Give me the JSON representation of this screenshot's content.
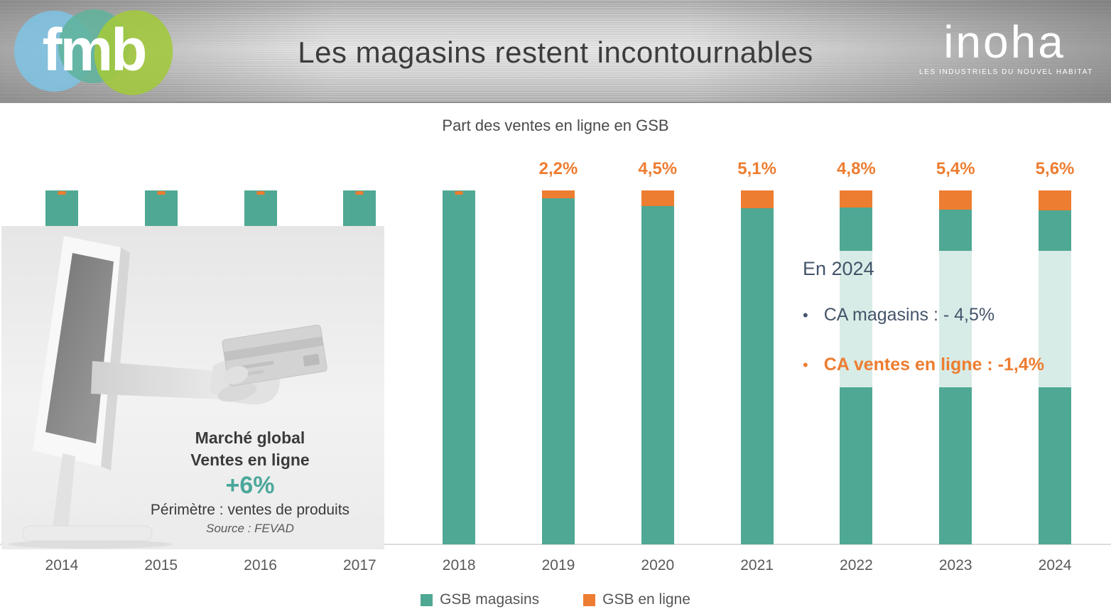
{
  "header": {
    "title": "Les magasins restent incontournables",
    "fmb_logo_text": "fmb",
    "inoha_logo_text": "inoha",
    "inoha_tagline": "LES INDUSTRIELS DU NOUVEL HABITAT"
  },
  "chart_data": {
    "type": "bar",
    "stacked": true,
    "percent_of_total": true,
    "title": "Part des ventes en ligne en GSB",
    "categories": [
      "2014",
      "2015",
      "2016",
      "2017",
      "2018",
      "2019",
      "2020",
      "2021",
      "2022",
      "2023",
      "2024"
    ],
    "series": [
      {
        "name": "GSB magasins",
        "color": "#4FA893",
        "values": [
          99.5,
          99.5,
          99.5,
          99.5,
          99.3,
          97.8,
          95.5,
          94.9,
          95.2,
          94.6,
          94.4
        ]
      },
      {
        "name": "GSB en ligne",
        "color": "#ED7D31",
        "values": [
          0.5,
          0.5,
          0.5,
          0.5,
          0.7,
          2.2,
          4.5,
          5.1,
          4.8,
          5.4,
          5.6
        ]
      }
    ],
    "bar_labels": [
      "",
      "",
      "",
      "",
      "",
      "2,2%",
      "4,5%",
      "5,1%",
      "4,8%",
      "5,4%",
      "5,6%"
    ],
    "legend": [
      {
        "label": "GSB magasins",
        "color": "#4FA893"
      },
      {
        "label": "GSB en ligne",
        "color": "#ED7D31"
      }
    ],
    "legend_position": "bottom",
    "ylim": [
      0,
      100
    ],
    "gridlines": false
  },
  "annotation": {
    "heading": "En 2024",
    "bullets": [
      {
        "text": "CA magasins : - 4,5%",
        "color": "#44546A"
      },
      {
        "text": "CA ventes en ligne : -1,4%",
        "color": "#ED7D31"
      }
    ]
  },
  "inset": {
    "line1": "Marché global",
    "line2": "Ventes en ligne",
    "highlight": "+6%",
    "perimeter": "Périmètre : ventes de produits",
    "source": "Source : FEVAD"
  },
  "colors": {
    "teal": "#4FA893",
    "orange": "#ED7D31",
    "slate_text": "#44546A",
    "axis_text": "#595959",
    "highlight_green": "#4BA89B"
  }
}
